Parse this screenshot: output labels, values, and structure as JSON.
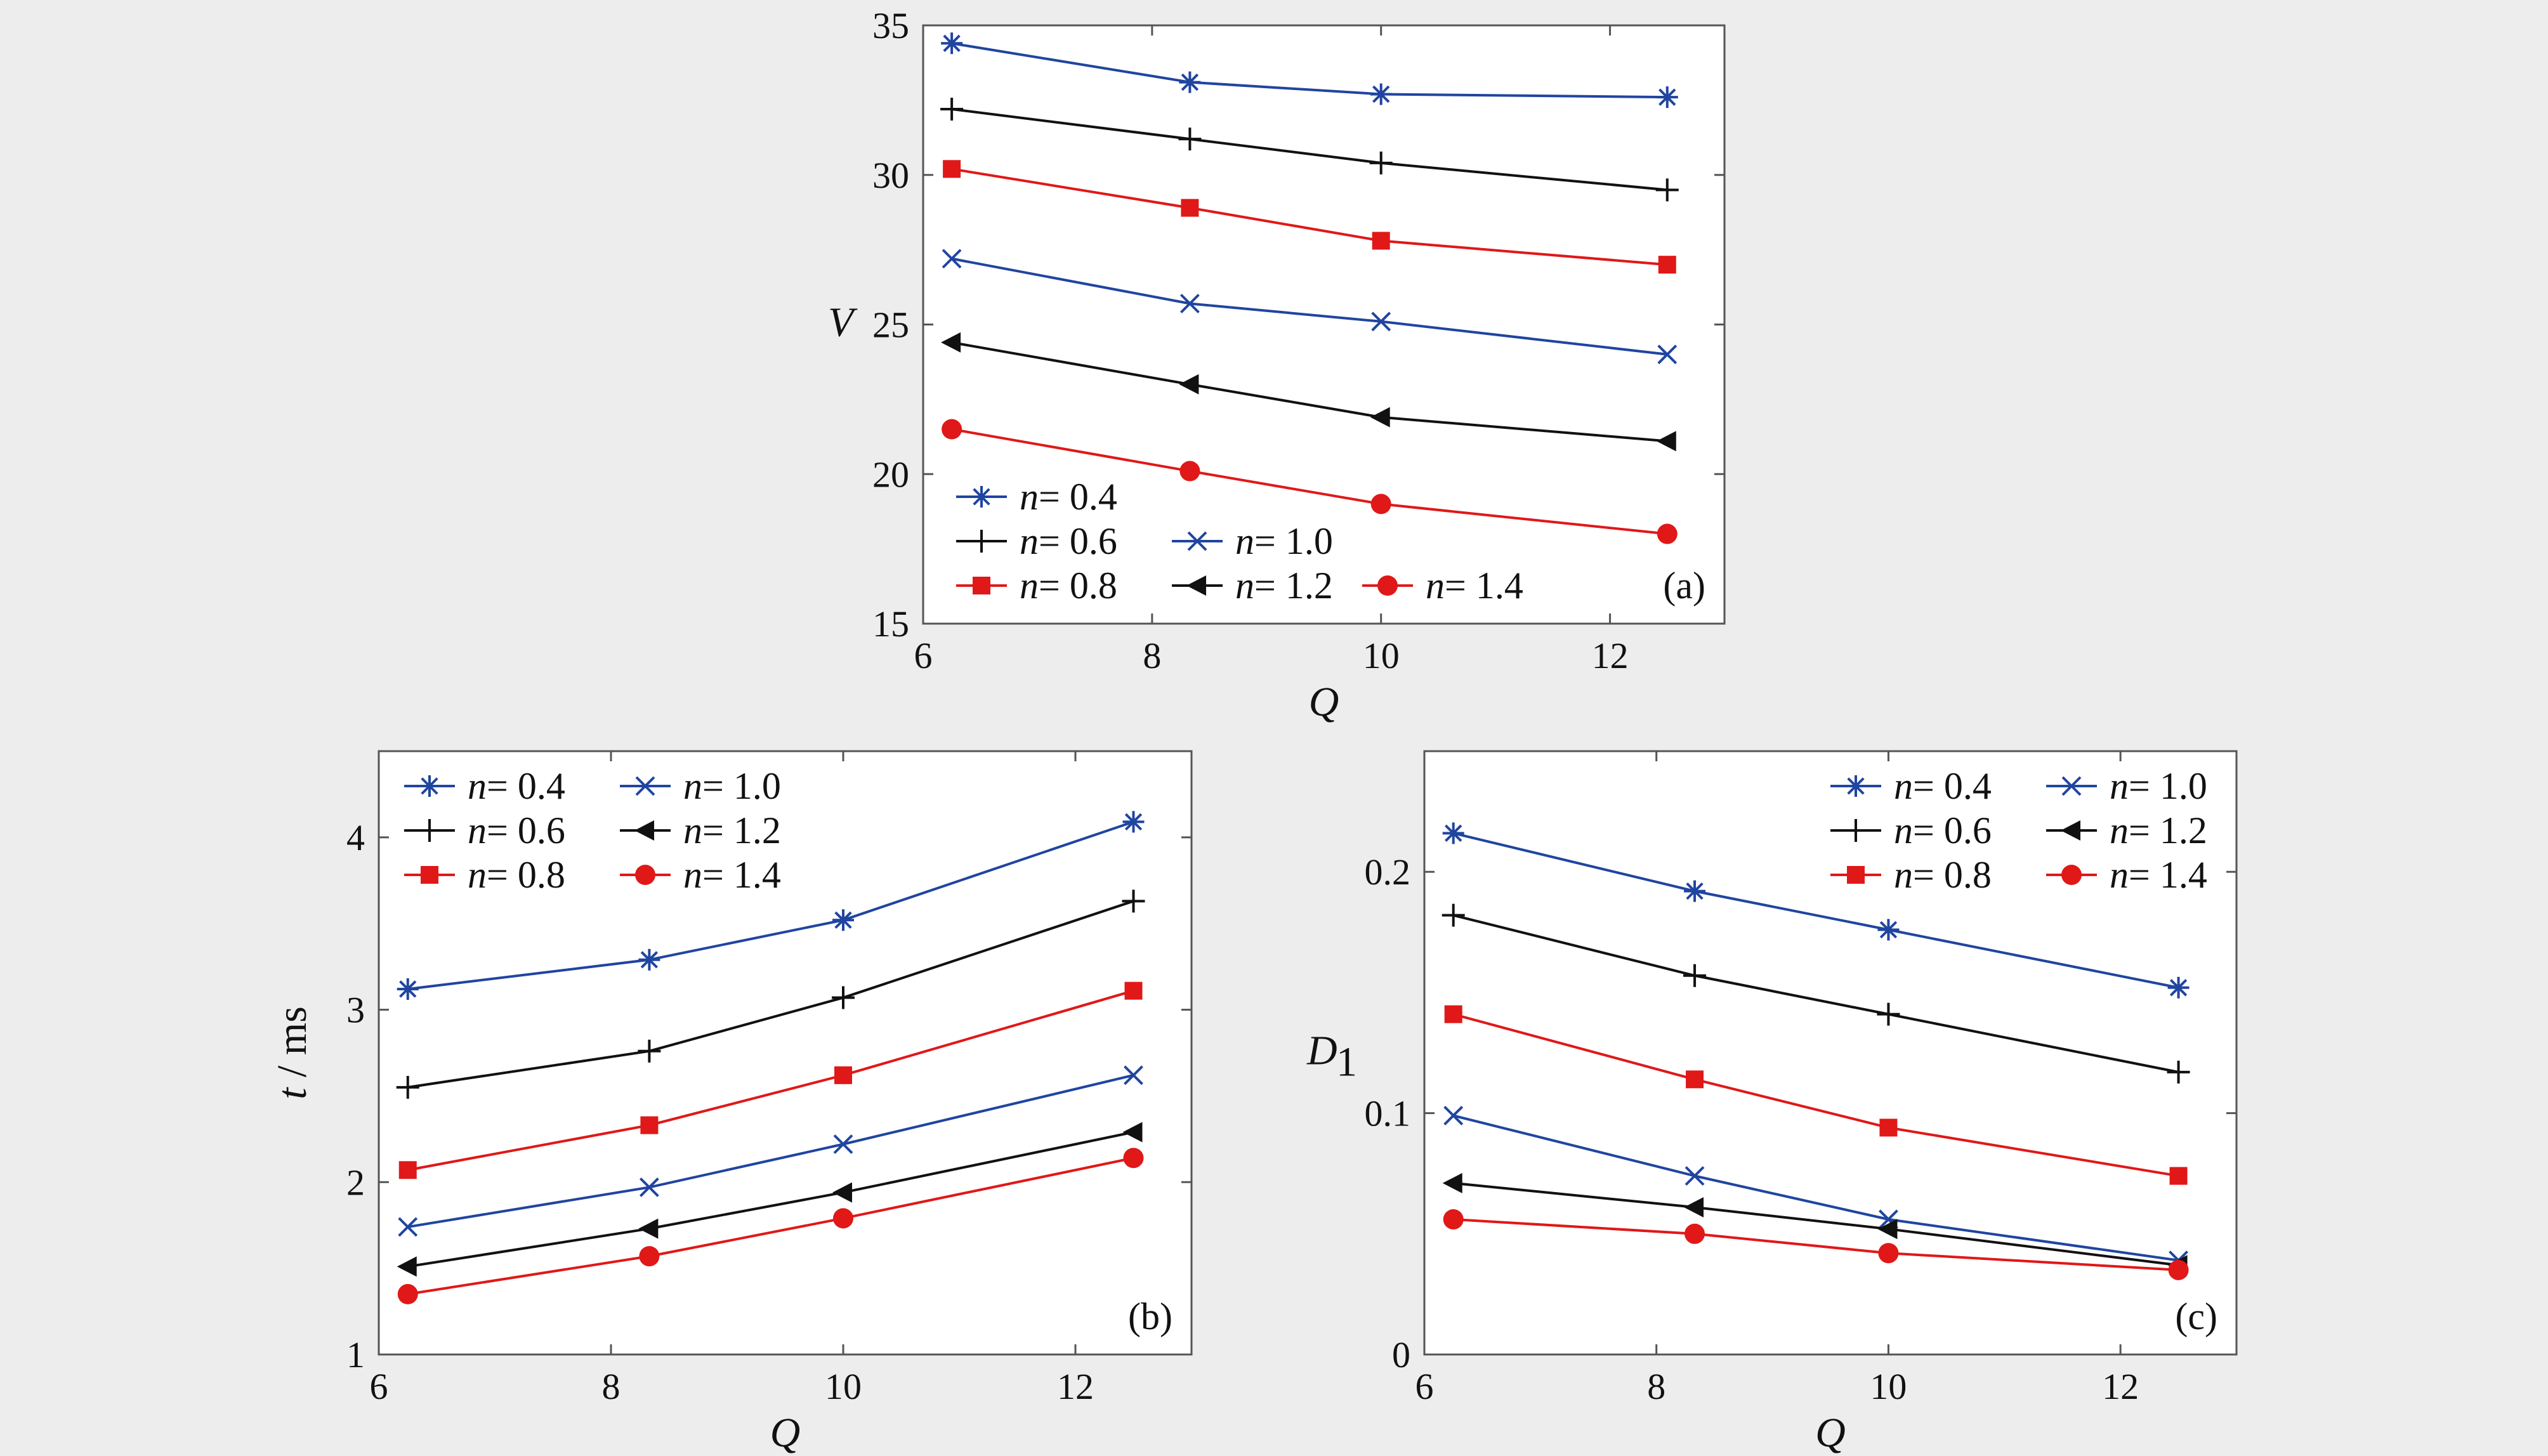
{
  "colors": {
    "blue": "#2045a0",
    "black": "#111111",
    "red": "#e01818",
    "frame": "#555555",
    "plot_background": "#ffffff",
    "figure_background": "#ededed"
  },
  "markers": {
    "n=0.4": "asterisk",
    "n=0.6": "plus",
    "n=0.8": "square",
    "n=1.0": "x",
    "n=1.2": "left-triangle",
    "n=1.4": "circle"
  },
  "chart_data": [
    {
      "panel": "(a)",
      "type": "line",
      "xlabel": "Q",
      "ylabel": "V",
      "ylabel_subscript": "",
      "xlim": [
        6,
        13
      ],
      "ylim": [
        15,
        35
      ],
      "xticks": [
        "6",
        "8",
        "10",
        "12"
      ],
      "yticks": [
        "15",
        "20",
        "25",
        "30",
        "35"
      ],
      "x": [
        6.25,
        8.33,
        10,
        12.5
      ],
      "legend_position": "bottom-left",
      "series": [
        {
          "name": "n= 0.4",
          "n_value": "0.4",
          "color": "blue",
          "marker": "asterisk",
          "values": [
            34.4,
            33.1,
            32.7,
            32.6
          ]
        },
        {
          "name": "n= 0.6",
          "n_value": "0.6",
          "color": "black",
          "marker": "plus",
          "values": [
            32.2,
            31.2,
            30.4,
            29.5
          ]
        },
        {
          "name": "n= 0.8",
          "n_value": "0.8",
          "color": "red",
          "marker": "square",
          "values": [
            30.2,
            28.9,
            27.8,
            27.0
          ]
        },
        {
          "name": "n= 1.0",
          "n_value": "1.0",
          "color": "blue",
          "marker": "x",
          "values": [
            27.2,
            25.7,
            25.1,
            24.0
          ]
        },
        {
          "name": "n= 1.2",
          "n_value": "1.2",
          "color": "black",
          "marker": "left-triangle",
          "values": [
            24.4,
            23.0,
            21.9,
            21.1
          ]
        },
        {
          "name": "n= 1.4",
          "n_value": "1.4",
          "color": "red",
          "marker": "circle",
          "values": [
            21.5,
            20.1,
            19.0,
            18.0
          ]
        }
      ]
    },
    {
      "panel": "(b)",
      "type": "line",
      "xlabel": "Q",
      "ylabel": "t",
      "ylabel_suffix": " / ms",
      "xlim": [
        6,
        13
      ],
      "ylim": [
        1,
        4.5
      ],
      "xticks": [
        "6",
        "8",
        "10",
        "12"
      ],
      "yticks": [
        "1",
        "2",
        "3",
        "4"
      ],
      "x": [
        6.25,
        8.33,
        10,
        12.5
      ],
      "legend_position": "top-left",
      "series": [
        {
          "name": "n= 0.4",
          "n_value": "0.4",
          "color": "blue",
          "marker": "asterisk",
          "values": [
            3.12,
            3.29,
            3.52,
            4.09
          ]
        },
        {
          "name": "n= 0.6",
          "n_value": "0.6",
          "color": "black",
          "marker": "plus",
          "values": [
            2.55,
            2.76,
            3.07,
            3.63
          ]
        },
        {
          "name": "n= 0.8",
          "n_value": "0.8",
          "color": "red",
          "marker": "square",
          "values": [
            2.07,
            2.33,
            2.62,
            3.11
          ]
        },
        {
          "name": "n= 1.0",
          "n_value": "1.0",
          "color": "blue",
          "marker": "x",
          "values": [
            1.74,
            1.97,
            2.22,
            2.62
          ]
        },
        {
          "name": "n= 1.2",
          "n_value": "1.2",
          "color": "black",
          "marker": "left-triangle",
          "values": [
            1.51,
            1.73,
            1.94,
            2.29
          ]
        },
        {
          "name": "n= 1.4",
          "n_value": "1.4",
          "color": "red",
          "marker": "circle",
          "values": [
            1.35,
            1.57,
            1.79,
            2.14
          ]
        }
      ]
    },
    {
      "panel": "(c)",
      "type": "line",
      "xlabel": "Q",
      "ylabel": "D",
      "ylabel_subscript": "1",
      "xlim": [
        6,
        13
      ],
      "ylim": [
        0,
        0.25
      ],
      "xticks": [
        "6",
        "8",
        "10",
        "12"
      ],
      "yticks": [
        "0",
        "0.1",
        "0.2"
      ],
      "x": [
        6.25,
        8.33,
        10,
        12.5
      ],
      "legend_position": "top-right",
      "series": [
        {
          "name": "n= 0.4",
          "n_value": "0.4",
          "color": "blue",
          "marker": "asterisk",
          "values": [
            0.216,
            0.192,
            0.176,
            0.152
          ]
        },
        {
          "name": "n= 0.6",
          "n_value": "0.6",
          "color": "black",
          "marker": "plus",
          "values": [
            0.182,
            0.157,
            0.141,
            0.117
          ]
        },
        {
          "name": "n= 0.8",
          "n_value": "0.8",
          "color": "red",
          "marker": "square",
          "values": [
            0.141,
            0.114,
            0.094,
            0.074
          ]
        },
        {
          "name": "n= 1.0",
          "n_value": "1.0",
          "color": "blue",
          "marker": "x",
          "values": [
            0.099,
            0.074,
            0.056,
            0.039
          ]
        },
        {
          "name": "n= 1.2",
          "n_value": "1.2",
          "color": "black",
          "marker": "left-triangle",
          "values": [
            0.071,
            0.061,
            0.052,
            0.037
          ]
        },
        {
          "name": "n= 1.4",
          "n_value": "1.4",
          "color": "red",
          "marker": "circle",
          "values": [
            0.056,
            0.05,
            0.042,
            0.035
          ]
        }
      ]
    }
  ]
}
